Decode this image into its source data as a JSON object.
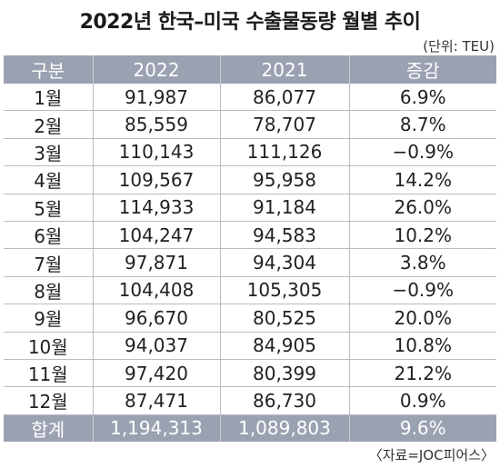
{
  "title": "2022년 한국–미국 수출물동량 월별 추이",
  "unit": "(단위: TEU)",
  "table": {
    "headers": [
      "구분",
      "2022",
      "2021",
      "증감"
    ],
    "rows": [
      [
        "1월",
        "91,987",
        "86,077",
        "6.9%"
      ],
      [
        "2월",
        "85,559",
        "78,707",
        "8.7%"
      ],
      [
        "3월",
        "110,143",
        "111,126",
        "−0.9%"
      ],
      [
        "4월",
        "109,567",
        "95,958",
        "14.2%"
      ],
      [
        "5월",
        "114,933",
        "91,184",
        "26.0%"
      ],
      [
        "6월",
        "104,247",
        "94,583",
        "10.2%"
      ],
      [
        "7월",
        "97,871",
        "94,304",
        "3.8%"
      ],
      [
        "8월",
        "104,408",
        "105,305",
        "−0.9%"
      ],
      [
        "9월",
        "96,670",
        "80,525",
        "20.0%"
      ],
      [
        "10월",
        "94,037",
        "84,905",
        "10.8%"
      ],
      [
        "11월",
        "97,420",
        "80,399",
        "21.2%"
      ],
      [
        "12월",
        "87,471",
        "86,730",
        "0.9%"
      ]
    ],
    "total": [
      "합계",
      "1,194,313",
      "1,089,803",
      "9.6%"
    ]
  },
  "source": "〈자료=JOC피어스〉",
  "colors": {
    "header_bg": "#9aa1b1",
    "header_text": "#ffffff",
    "grid_line": "#b9bcc4"
  }
}
